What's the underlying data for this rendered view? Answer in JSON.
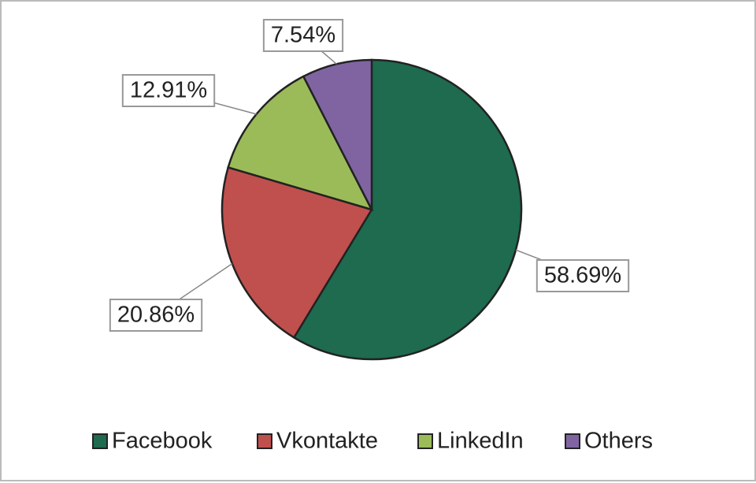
{
  "chart_data": {
    "type": "pie",
    "categories": [
      "Facebook",
      "Vkontakte",
      "LinkedIn",
      "Others"
    ],
    "values": [
      58.69,
      20.86,
      12.91,
      7.54
    ],
    "value_labels": [
      "58.69%",
      "20.86%",
      "12.91%",
      "7.54%"
    ],
    "colors": [
      "#1e6b4f",
      "#c0504d",
      "#9bbb59",
      "#8064a2"
    ],
    "legend": "bottom"
  }
}
